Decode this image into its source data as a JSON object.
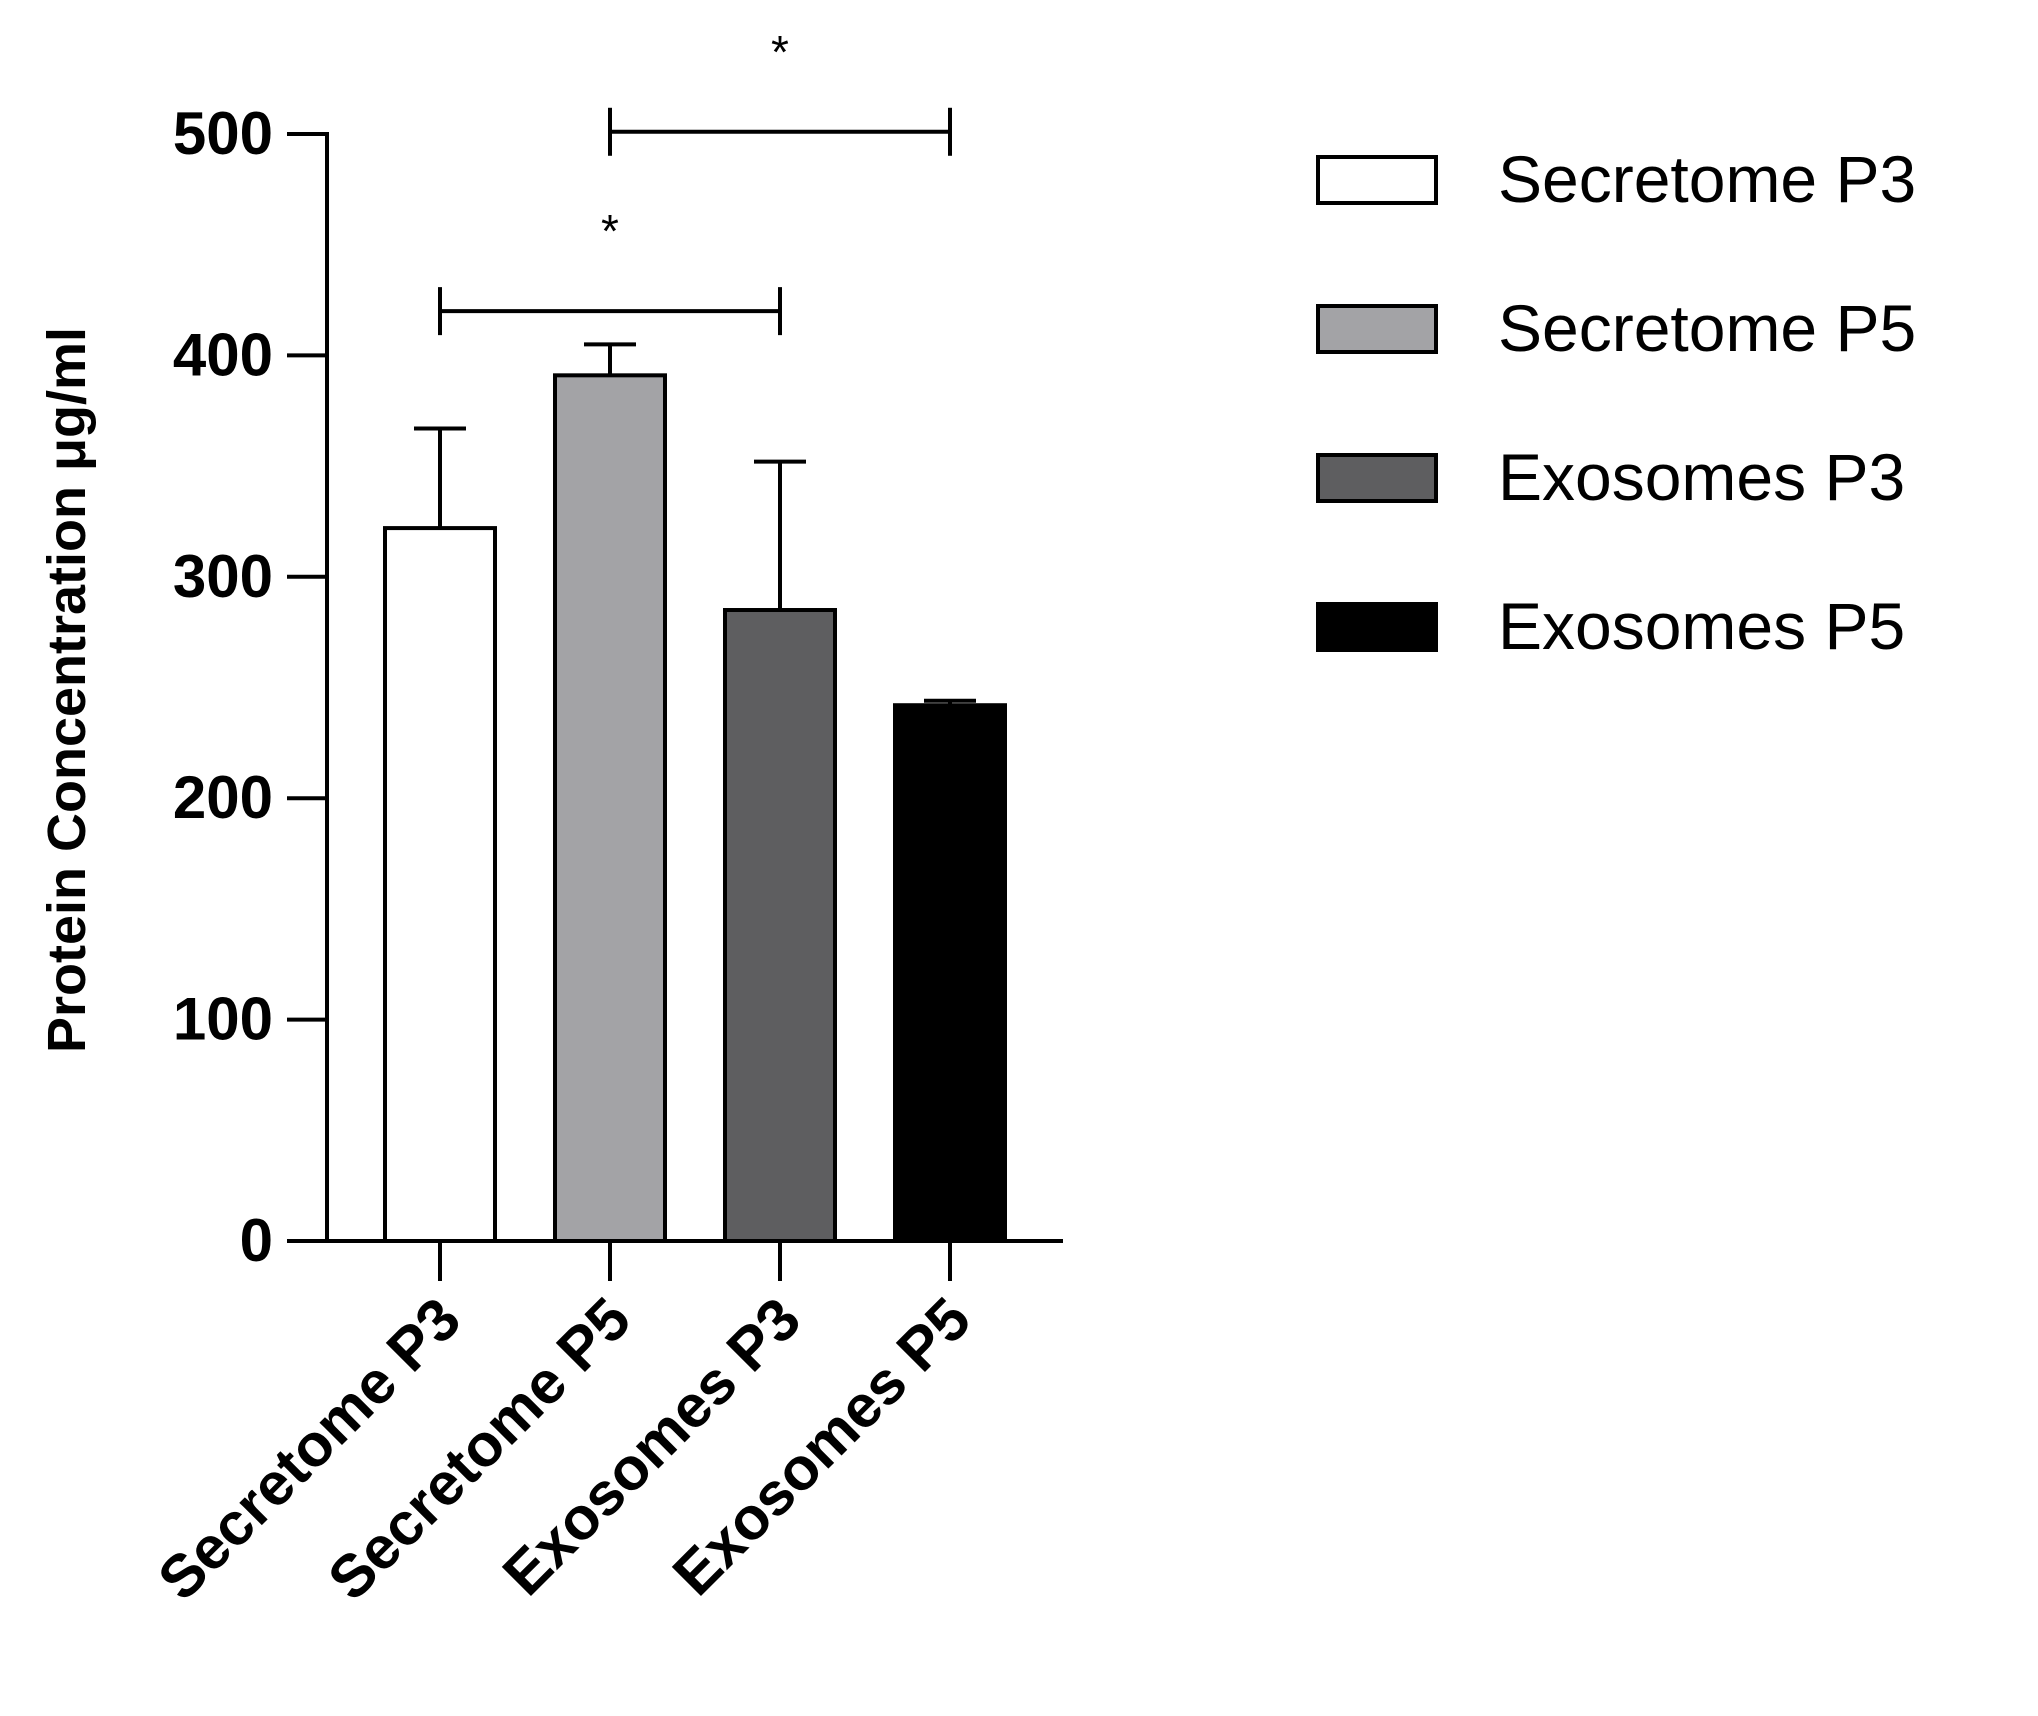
{
  "chart_data": {
    "type": "bar",
    "title": "",
    "xlabel": "",
    "ylabel": "Protein Concentration μg/ml",
    "ylim": [
      0,
      500
    ],
    "yticks": [
      0,
      100,
      200,
      300,
      400,
      500
    ],
    "ytick_labels": [
      "0",
      "100",
      "200",
      "300",
      "400",
      "500"
    ],
    "categories": [
      "Secretome P3",
      "Secretome P5",
      "Exosomes P3",
      "Exosomes P5"
    ],
    "values": [
      322,
      391,
      285,
      242
    ],
    "errors": [
      45,
      14,
      67,
      2
    ],
    "colors": [
      "#ffffff",
      "#a3a3a6",
      "#5e5e60",
      "#000000"
    ],
    "legend": {
      "placement": "top-right",
      "entries": [
        "Secretome P3",
        "Secretome P5",
        "Exosomes P3",
        "Exosomes P5"
      ]
    },
    "significance": [
      {
        "from": 0,
        "to": 2,
        "label": "*",
        "level": 420
      },
      {
        "from": 1,
        "to": 3,
        "label": "*",
        "level": 501
      }
    ],
    "grid": false
  }
}
